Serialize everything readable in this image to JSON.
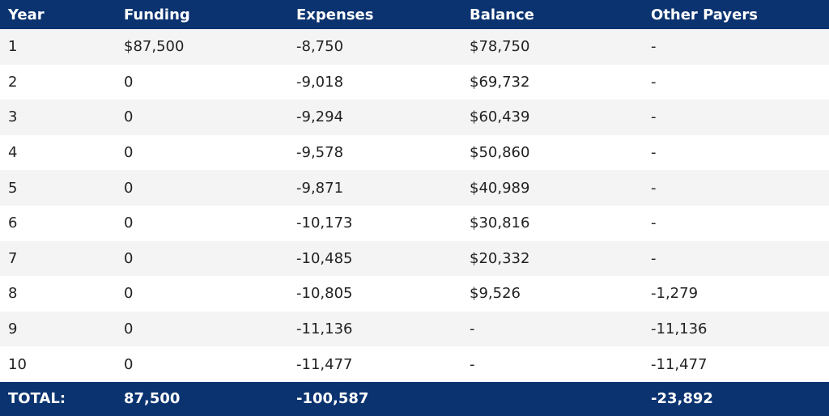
{
  "table": {
    "header": [
      "Year",
      "Funding",
      "Expenses",
      "Balance",
      "Other Payers"
    ],
    "rows": [
      [
        "1",
        "$87,500",
        "-8,750",
        "$78,750",
        "-"
      ],
      [
        "2",
        "0",
        "-9,018",
        "$69,732",
        "-"
      ],
      [
        "3",
        "0",
        "-9,294",
        "$60,439",
        "-"
      ],
      [
        "4",
        "0",
        "-9,578",
        "$50,860",
        "-"
      ],
      [
        "5",
        "0",
        "-9,871",
        "$40,989",
        "-"
      ],
      [
        "6",
        "0",
        "-10,173",
        "$30,816",
        "-"
      ],
      [
        "7",
        "0",
        "-10,485",
        "$20,332",
        "-"
      ],
      [
        "8",
        "0",
        "-10,805",
        "$9,526",
        "-1,279"
      ],
      [
        "9",
        "0",
        "-11,136",
        "-",
        "-11,136"
      ],
      [
        "10",
        "0",
        "-11,477",
        "-",
        "-11,477"
      ]
    ],
    "footer": [
      "TOTAL:",
      "87,500",
      "-100,587",
      null,
      "-23,892"
    ]
  }
}
